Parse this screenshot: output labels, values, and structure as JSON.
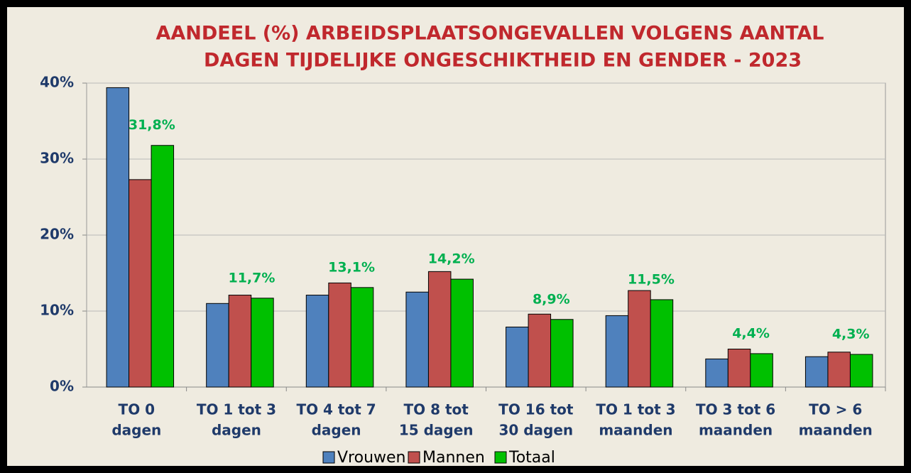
{
  "chart_data": {
    "type": "bar",
    "title": [
      "AANDEEL (%) ARBEIDSPLAATSONGEVALLEN VOLGENS AANTAL",
      "DAGEN TIJDELIJKE ONGESCHIKTHEID EN GENDER - 2023"
    ],
    "categories": [
      [
        "TO 0",
        "dagen"
      ],
      [
        "TO 1 tot 3",
        "dagen"
      ],
      [
        "TO 4 tot 7",
        "dagen"
      ],
      [
        "TO 8 tot",
        "15 dagen"
      ],
      [
        "TO 16 tot",
        "30 dagen"
      ],
      [
        "TO 1 tot 3",
        "maanden"
      ],
      [
        "TO 3 tot 6",
        "maanden"
      ],
      [
        "TO > 6",
        "maanden"
      ]
    ],
    "series": [
      {
        "name": "Vrouwen",
        "color": "#4f81bd",
        "values": [
          39.4,
          11.0,
          12.1,
          12.5,
          7.9,
          9.4,
          3.7,
          4.0
        ]
      },
      {
        "name": "Mannen",
        "color": "#c0504d",
        "values": [
          27.3,
          12.1,
          13.7,
          15.2,
          9.6,
          12.7,
          5.0,
          4.6
        ]
      },
      {
        "name": "Totaal",
        "color": "#00c000",
        "values": [
          31.8,
          11.7,
          13.1,
          14.2,
          8.9,
          11.5,
          4.4,
          4.3
        ],
        "value_labels": [
          "31,8%",
          "11,7%",
          "13,1%",
          "14,2%",
          "8,9%",
          "11,5%",
          "4,4%",
          "4,3%"
        ]
      }
    ],
    "ylim": [
      0,
      40
    ],
    "yticks": [
      {
        "value": 0,
        "label": "0%"
      },
      {
        "value": 10,
        "label": "10%"
      },
      {
        "value": 20,
        "label": "20%"
      },
      {
        "value": 30,
        "label": "30%"
      },
      {
        "value": 40,
        "label": "40%"
      }
    ],
    "grid": true,
    "legend": "bottom"
  }
}
